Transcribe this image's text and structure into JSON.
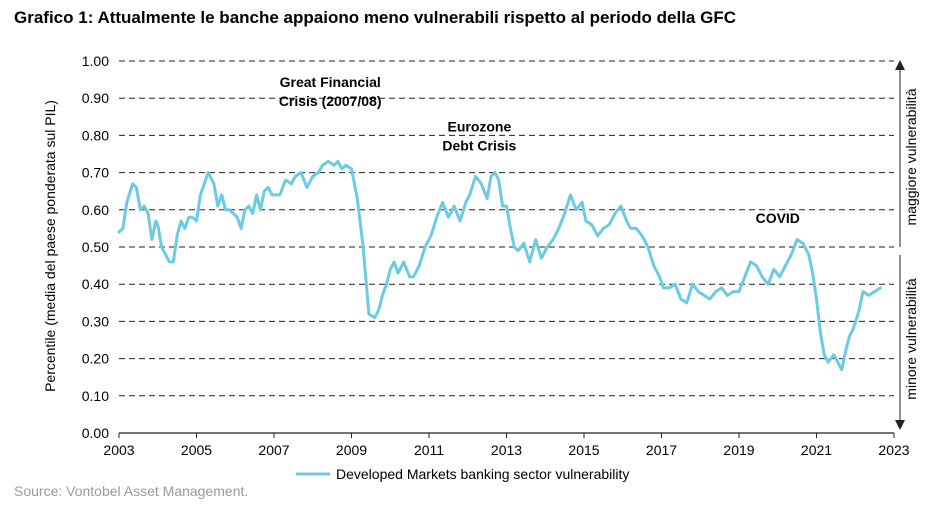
{
  "title": "Grafico 1: Attualmente le banche appaiono meno vulnerabili rispetto al periodo della GFC",
  "source": "Source: Vontobel Asset Management.",
  "colors": {
    "series": "#6ccbe3",
    "grid": "#222222",
    "text": "#000000",
    "source": "#9a9a9a"
  },
  "chart_data": {
    "type": "line",
    "title": "",
    "xlabel": "",
    "ylabel": "Percentile (media del paese ponderata sul PIL)",
    "xlim": [
      2003,
      2023
    ],
    "ylim": [
      0,
      1
    ],
    "x_ticks": [
      "2003",
      "2005",
      "2007",
      "2009",
      "2011",
      "2013",
      "2015",
      "2017",
      "2019",
      "2021",
      "2023"
    ],
    "y_ticks": [
      "0.00",
      "0.10",
      "0.20",
      "0.30",
      "0.40",
      "0.50",
      "0.60",
      "0.70",
      "0.80",
      "0.90",
      "1.00"
    ],
    "grid": "horizontal dashed",
    "legend_position": "bottom-center",
    "annotations": [
      {
        "lines": [
          "Great Financial",
          "Crisis (2007/08)"
        ],
        "x": 2008.45,
        "y": 0.93
      },
      {
        "lines": [
          "Eurozone",
          "Debt Crisis"
        ],
        "x": 2012.3,
        "y": 0.81
      },
      {
        "lines": [
          "COVID"
        ],
        "x": 2020.0,
        "y": 0.565
      }
    ],
    "side_labels": {
      "upper": "maggiore vulnerabilità",
      "lower": "minore vulnerabilità"
    },
    "series": [
      {
        "name": "Developed Markets banking sector vulnerability",
        "x": [
          2003.0,
          2003.1,
          2003.2,
          2003.35,
          2003.45,
          2003.55,
          2003.65,
          2003.75,
          2003.85,
          2003.95,
          2004.0,
          2004.1,
          2004.2,
          2004.3,
          2004.4,
          2004.5,
          2004.6,
          2004.7,
          2004.8,
          2004.9,
          2005.0,
          2005.1,
          2005.2,
          2005.3,
          2005.45,
          2005.55,
          2005.65,
          2005.75,
          2005.85,
          2005.95,
          2006.05,
          2006.15,
          2006.25,
          2006.35,
          2006.45,
          2006.55,
          2006.65,
          2006.75,
          2006.85,
          2006.95,
          2007.05,
          2007.15,
          2007.3,
          2007.45,
          2007.55,
          2007.7,
          2007.85,
          2008.0,
          2008.15,
          2008.25,
          2008.4,
          2008.55,
          2008.65,
          2008.75,
          2008.85,
          2009.0,
          2009.15,
          2009.3,
          2009.45,
          2009.6,
          2009.7,
          2009.8,
          2009.9,
          2010.0,
          2010.1,
          2010.2,
          2010.35,
          2010.5,
          2010.6,
          2010.75,
          2010.9,
          2011.05,
          2011.2,
          2011.35,
          2011.5,
          2011.65,
          2011.8,
          2011.95,
          2012.05,
          2012.2,
          2012.35,
          2012.5,
          2012.6,
          2012.7,
          2012.8,
          2012.9,
          2013.0,
          2013.1,
          2013.2,
          2013.3,
          2013.45,
          2013.6,
          2013.75,
          2013.9,
          2014.05,
          2014.2,
          2014.35,
          2014.5,
          2014.65,
          2014.8,
          2014.95,
          2015.05,
          2015.2,
          2015.35,
          2015.5,
          2015.65,
          2015.8,
          2015.95,
          2016.1,
          2016.2,
          2016.35,
          2016.5,
          2016.65,
          2016.8,
          2016.95,
          2017.05,
          2017.2,
          2017.35,
          2017.5,
          2017.65,
          2017.8,
          2017.95,
          2018.1,
          2018.25,
          2018.4,
          2018.55,
          2018.7,
          2018.85,
          2019.0,
          2019.15,
          2019.3,
          2019.45,
          2019.6,
          2019.75,
          2019.9,
          2020.05,
          2020.2,
          2020.35,
          2020.5,
          2020.65,
          2020.8,
          2020.9,
          2021.0,
          2021.1,
          2021.2,
          2021.3,
          2021.45,
          2021.55,
          2021.65,
          2021.75,
          2021.85,
          2021.95,
          2022.1,
          2022.2,
          2022.35,
          2022.5,
          2022.65
        ],
        "y": [
          0.54,
          0.55,
          0.62,
          0.67,
          0.66,
          0.6,
          0.61,
          0.59,
          0.52,
          0.57,
          0.56,
          0.5,
          0.48,
          0.46,
          0.46,
          0.53,
          0.57,
          0.55,
          0.58,
          0.58,
          0.57,
          0.64,
          0.67,
          0.7,
          0.67,
          0.61,
          0.64,
          0.6,
          0.6,
          0.59,
          0.58,
          0.55,
          0.6,
          0.61,
          0.59,
          0.64,
          0.6,
          0.65,
          0.66,
          0.64,
          0.64,
          0.64,
          0.68,
          0.67,
          0.69,
          0.7,
          0.66,
          0.69,
          0.7,
          0.72,
          0.73,
          0.72,
          0.73,
          0.71,
          0.72,
          0.71,
          0.63,
          0.5,
          0.32,
          0.31,
          0.33,
          0.37,
          0.4,
          0.44,
          0.46,
          0.43,
          0.46,
          0.42,
          0.42,
          0.45,
          0.5,
          0.53,
          0.58,
          0.62,
          0.58,
          0.61,
          0.57,
          0.62,
          0.64,
          0.69,
          0.67,
          0.63,
          0.69,
          0.7,
          0.68,
          0.61,
          0.61,
          0.55,
          0.5,
          0.49,
          0.51,
          0.46,
          0.52,
          0.47,
          0.5,
          0.52,
          0.55,
          0.59,
          0.64,
          0.6,
          0.62,
          0.57,
          0.56,
          0.53,
          0.55,
          0.56,
          0.59,
          0.61,
          0.57,
          0.55,
          0.55,
          0.53,
          0.5,
          0.45,
          0.42,
          0.39,
          0.39,
          0.4,
          0.36,
          0.35,
          0.4,
          0.38,
          0.37,
          0.36,
          0.38,
          0.39,
          0.37,
          0.38,
          0.38,
          0.42,
          0.46,
          0.45,
          0.42,
          0.4,
          0.44,
          0.42,
          0.45,
          0.48,
          0.52,
          0.51,
          0.48,
          0.43,
          0.36,
          0.27,
          0.21,
          0.19,
          0.21,
          0.19,
          0.17,
          0.22,
          0.26,
          0.28,
          0.33,
          0.38,
          0.37,
          0.38,
          0.39
        ]
      }
    ]
  }
}
